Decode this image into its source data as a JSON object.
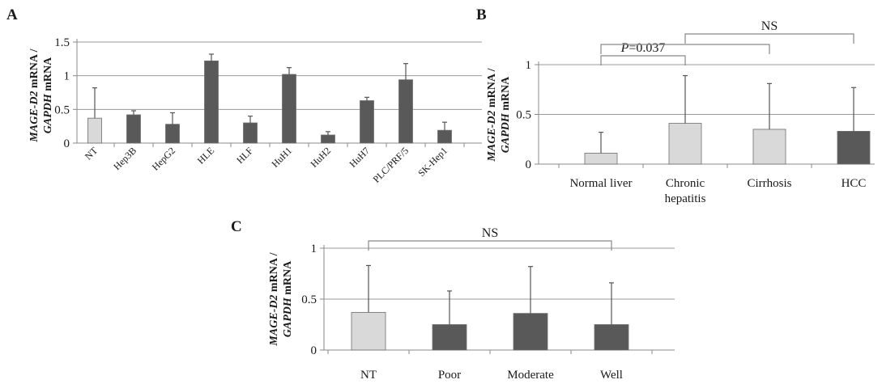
{
  "colors": {
    "light_bar": "#d9d9d9",
    "dark_bar": "#595959",
    "axis": "#888888",
    "grid": "#9a9a9a",
    "text": "#1a1a1a"
  },
  "ylabel": {
    "gene": "MAGE-D2",
    "gene_suffix": " mRNA /",
    "ref": "GAPDH",
    "ref_suffix": " mRNA"
  },
  "chart_data": [
    {
      "panel": "A",
      "type": "bar",
      "categories": [
        "NT",
        "Hep3B",
        "HepG2",
        "HLE",
        "HLF",
        "HuH1",
        "HuH2",
        "HuH7",
        "PLC/PRF/5",
        "SK-Hep1"
      ],
      "values": [
        0.37,
        0.42,
        0.28,
        1.22,
        0.3,
        1.02,
        0.12,
        0.63,
        0.94,
        0.19
      ],
      "errors": [
        0.45,
        0.06,
        0.17,
        0.1,
        0.1,
        0.1,
        0.05,
        0.05,
        0.24,
        0.12
      ],
      "bar_colors": [
        "light",
        "dark",
        "dark",
        "dark",
        "dark",
        "dark",
        "dark",
        "dark",
        "dark",
        "dark"
      ],
      "yticks": [
        "0",
        "0.5",
        "1",
        "1.5"
      ],
      "ylim": [
        0,
        1.5
      ],
      "grid": true,
      "annotations": []
    },
    {
      "panel": "B",
      "type": "bar",
      "categories": [
        "Normal liver",
        "Chronic\nhepatitis",
        "Cirrhosis",
        "HCC"
      ],
      "values": [
        0.11,
        0.41,
        0.35,
        0.33
      ],
      "errors": [
        0.21,
        0.48,
        0.46,
        0.44
      ],
      "bar_colors": [
        "light",
        "light",
        "light",
        "dark"
      ],
      "yticks": [
        "0",
        "0.5",
        "1"
      ],
      "ylim": [
        0,
        1
      ],
      "grid": true,
      "annotations": [
        {
          "from": 0,
          "to": 1,
          "level": 1,
          "prefix": "P",
          "label": "=0.037"
        },
        {
          "from": 0,
          "to": 2,
          "level": 2,
          "prefix": "",
          "label": ""
        },
        {
          "from": 1,
          "to": 3,
          "level": 3,
          "prefix": "",
          "label": "NS"
        }
      ]
    },
    {
      "panel": "C",
      "type": "bar",
      "categories": [
        "NT",
        "Poor",
        "Moderate",
        "Well"
      ],
      "values": [
        0.37,
        0.25,
        0.36,
        0.25
      ],
      "errors": [
        0.46,
        0.33,
        0.46,
        0.41
      ],
      "bar_colors": [
        "light",
        "dark",
        "dark",
        "dark"
      ],
      "yticks": [
        "0",
        "0.5",
        "1"
      ],
      "ylim": [
        0,
        1
      ],
      "grid": true,
      "annotations": [
        {
          "from": 0,
          "to": 3,
          "level": 1,
          "prefix": "",
          "label": "NS"
        }
      ]
    }
  ]
}
